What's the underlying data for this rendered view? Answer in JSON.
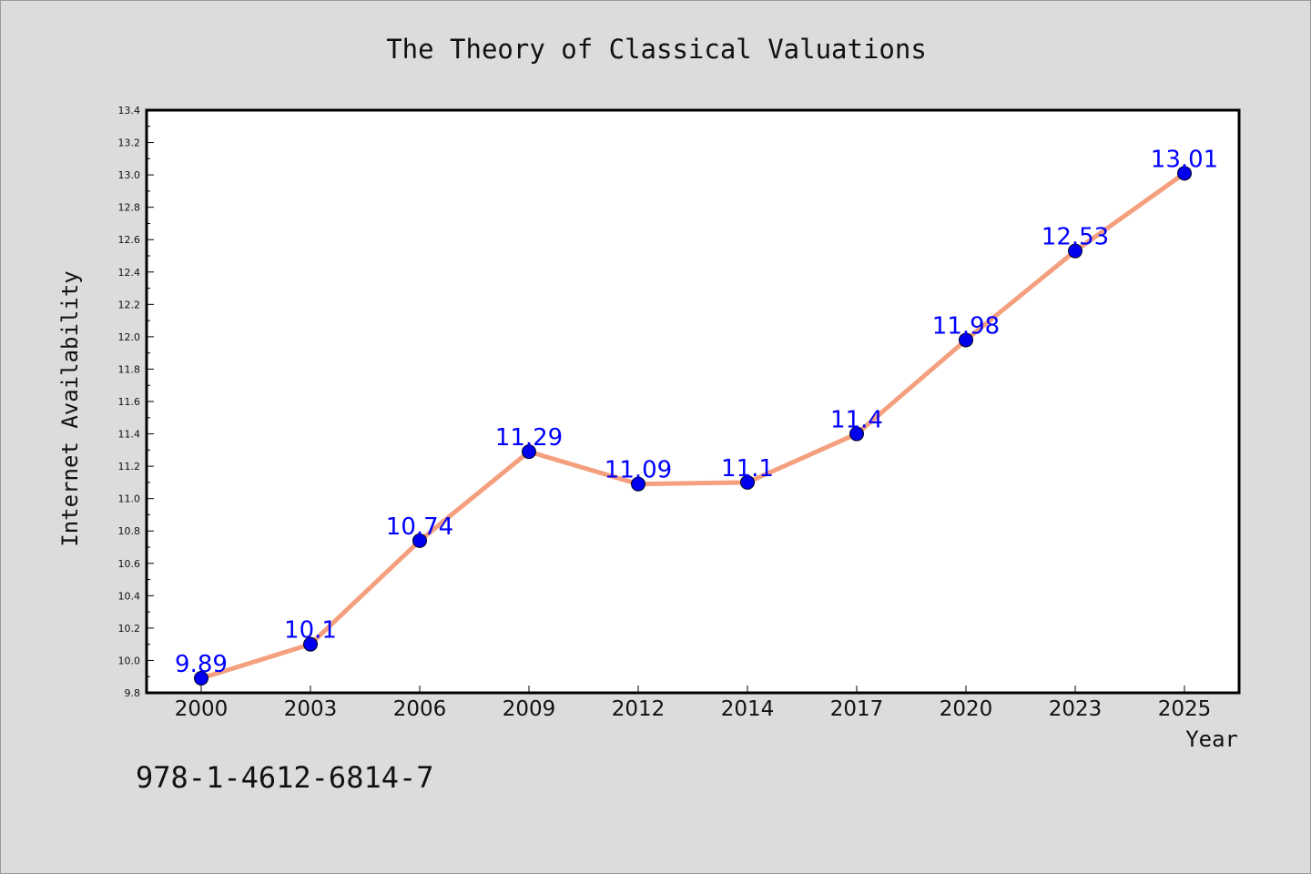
{
  "chart_data": {
    "type": "line",
    "title": "The Theory of Classical Valuations",
    "xlabel": "Year",
    "ylabel": "Internet Availability",
    "categories": [
      "2000",
      "2003",
      "2006",
      "2009",
      "2012",
      "2014",
      "2017",
      "2020",
      "2023",
      "2025"
    ],
    "series": [
      {
        "values": [
          9.89,
          10.1,
          10.74,
          11.29,
          11.09,
          11.1,
          11.4,
          11.98,
          12.53,
          13.01
        ],
        "data_labels": [
          "9.89",
          "10.1",
          "10.74",
          "11.29",
          "11.09",
          "11.1",
          "11.4",
          "11.98",
          "12.53",
          "13.01"
        ]
      }
    ],
    "ylim": [
      9.8,
      13.4
    ],
    "yticks": [
      "9.8",
      "10.0",
      "10.2",
      "10.4",
      "10.6",
      "10.8",
      "11.0",
      "11.2",
      "11.4",
      "11.6",
      "11.8",
      "12.0",
      "12.2",
      "12.4",
      "12.6",
      "12.8",
      "13.0",
      "13.2",
      "13.4"
    ],
    "grid": false,
    "colors": {
      "line": "#f4a07e",
      "marker": "#0000ee",
      "data_label": "#0000ff",
      "plot_bg": "#ffffff",
      "figure_bg": "#dcdcdc"
    }
  },
  "footer_code": "978-1-4612-6814-7"
}
